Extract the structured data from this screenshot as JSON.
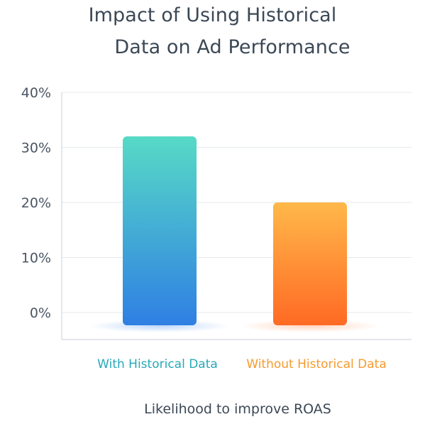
{
  "title_lines": [
    "Impact of Using Historical",
    "Data on Ad Performance"
  ],
  "chart_data": {
    "type": "bar",
    "title": "Impact of Using Historical Data on Ad Performance",
    "categories": [
      "With Historical Data",
      "Without Historical Data"
    ],
    "values": [
      32,
      20
    ],
    "units": "%",
    "y_ticks": [
      "0%",
      "10%",
      "20%",
      "30%",
      "40%"
    ],
    "ylim": [
      0,
      40
    ],
    "xlabel": "Likelihood to improve ROAS",
    "ylabel": "",
    "grid": true,
    "legend": "none",
    "colors": {
      "with_top": "#57dac6",
      "with_bottom": "#2f7fe3",
      "without_top": "#ffb84a",
      "without_bottom": "#ff6a24",
      "with_label": "#27a9b8",
      "without_label": "#f59a2e"
    }
  }
}
